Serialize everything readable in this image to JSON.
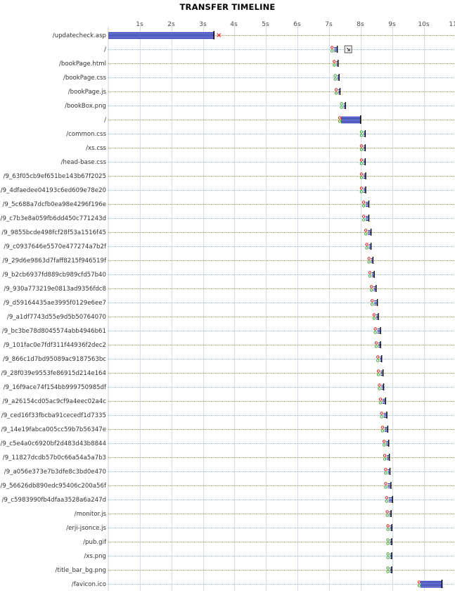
{
  "chart_data": {
    "type": "timeline",
    "title": "TRANSFER TIMELINE",
    "x_ticks": [
      "1s",
      "2s",
      "3s",
      "4s",
      "5s",
      "6s",
      "7s",
      "8s",
      "9s",
      "10s",
      "11s"
    ],
    "xlim": [
      0,
      10.6
    ],
    "grid": true,
    "colors": {
      "bar": "#1f2fb0",
      "bar_edge": "#000000",
      "marker_red": "#d82020",
      "marker_green": "#3aa83a",
      "gridline": "#d6dee8",
      "row_line_blue": "#8fc0d0",
      "row_line_olive": "#a89a48"
    },
    "requests": [
      {
        "url": "/updatecheck.asp",
        "start": 0.0,
        "end": 3.35,
        "markers": "stripe",
        "error": true
      },
      {
        "url": "/",
        "start": 7.05,
        "end": 7.25,
        "markers": "red",
        "annotation": "corner-arrow-icon"
      },
      {
        "url": "/bookPage.html",
        "start": 7.12,
        "end": 7.22,
        "markers": "red"
      },
      {
        "url": "/bookPage.css",
        "start": 7.15,
        "end": 7.25,
        "markers": "green"
      },
      {
        "url": "/bookPage.js",
        "start": 7.18,
        "end": 7.3,
        "markers": "red"
      },
      {
        "url": "/bookBox.png",
        "start": 7.35,
        "end": 7.45,
        "markers": "green"
      },
      {
        "url": "/",
        "start": 7.38,
        "end": 8.0,
        "markers": "stripe"
      },
      {
        "url": "/common.css",
        "start": 7.98,
        "end": 8.05,
        "markers": "green"
      },
      {
        "url": "/xs.css",
        "start": 7.98,
        "end": 8.08,
        "markers": "red"
      },
      {
        "url": "/head-base.css",
        "start": 7.98,
        "end": 8.08,
        "markers": "red"
      },
      {
        "url": "/9_63f05cb9ef651be143b67f2025",
        "start": 7.98,
        "end": 8.15,
        "markers": "red"
      },
      {
        "url": "/9_4dfaedee04193c6ed609e78e20",
        "start": 7.98,
        "end": 8.15,
        "markers": "red"
      },
      {
        "url": "/9_5c688a7dcfb0ea98e4296f196e",
        "start": 8.05,
        "end": 8.25,
        "markers": "red"
      },
      {
        "url": "/9_c7b3e8a059fb6dd450c771243d",
        "start": 8.05,
        "end": 8.25,
        "markers": "red"
      },
      {
        "url": "/9_9855bcde498fcf28f53a1516f45",
        "start": 8.12,
        "end": 8.32,
        "markers": "red"
      },
      {
        "url": "/9_c0937646e5570e477274a7b2f",
        "start": 8.15,
        "end": 8.32,
        "markers": "red"
      },
      {
        "url": "/9_29d6e9863d7faff8215f946519f",
        "start": 8.22,
        "end": 8.38,
        "markers": "red"
      },
      {
        "url": "/9_b2cb6937fd889cb989cfd57b40",
        "start": 8.25,
        "end": 8.42,
        "markers": "red"
      },
      {
        "url": "/9_930a773219e0813ad9356fdc8",
        "start": 8.3,
        "end": 8.48,
        "markers": "red"
      },
      {
        "url": "/9_d59164435ae3995f0129e6ee7",
        "start": 8.32,
        "end": 8.52,
        "markers": "red"
      },
      {
        "url": "/9_a1df7743d55e9d5b50764070",
        "start": 8.38,
        "end": 8.55,
        "markers": "red"
      },
      {
        "url": "/9_bc3be78d8045574abb4946b61",
        "start": 8.42,
        "end": 8.62,
        "markers": "red"
      },
      {
        "url": "/9_101fac0e7fdf311f44936f2dec2",
        "start": 8.45,
        "end": 8.62,
        "markers": "red"
      },
      {
        "url": "/9_866c1d7bd95089ac9187563bc",
        "start": 8.5,
        "end": 8.65,
        "markers": "red"
      },
      {
        "url": "/9_28f039e9553fe86915d214e164",
        "start": 8.52,
        "end": 8.7,
        "markers": "red"
      },
      {
        "url": "/9_16f9ace74f154bb999750985df",
        "start": 8.55,
        "end": 8.72,
        "markers": "red"
      },
      {
        "url": "/9_a26154cd05ac9cf9a4eec02a4c",
        "start": 8.58,
        "end": 8.78,
        "markers": "red"
      },
      {
        "url": "/9_ced16f33fbcba91cecedf1d7335",
        "start": 8.62,
        "end": 8.82,
        "markers": "red"
      },
      {
        "url": "/9_14e19fabca005cc59b7b56347e",
        "start": 8.65,
        "end": 8.85,
        "markers": "red"
      },
      {
        "url": "/9_c5e4a0c6920bf2d483d43b8844",
        "start": 8.7,
        "end": 8.88,
        "markers": "red"
      },
      {
        "url": "/9_11827dcdb57b0c66a54a5a7b3",
        "start": 8.72,
        "end": 8.9,
        "markers": "red"
      },
      {
        "url": "/9_a056e373e7b3dfe8c3bd0e470",
        "start": 8.75,
        "end": 8.92,
        "markers": "red"
      },
      {
        "url": "/9_56626db890edc95406c200a56f",
        "start": 8.75,
        "end": 8.95,
        "markers": "red"
      },
      {
        "url": "/9_c5983990fb4dfaa3528a6a247d",
        "start": 8.78,
        "end": 9.0,
        "markers": "red"
      },
      {
        "url": "/monitor.js",
        "start": 8.8,
        "end": 8.95,
        "markers": "red"
      },
      {
        "url": "/erji-jsonce.js",
        "start": 8.82,
        "end": 8.98,
        "markers": "red"
      },
      {
        "url": "/pub.gif",
        "start": 8.82,
        "end": 8.95,
        "markers": "green"
      },
      {
        "url": "/xs.png",
        "start": 8.82,
        "end": 8.95,
        "markers": "green"
      },
      {
        "url": "/title_bar_bg.png",
        "start": 8.82,
        "end": 8.95,
        "markers": "green"
      },
      {
        "url": "/favicon.ico",
        "start": 9.9,
        "end": 10.58,
        "markers": "stripe"
      }
    ]
  }
}
